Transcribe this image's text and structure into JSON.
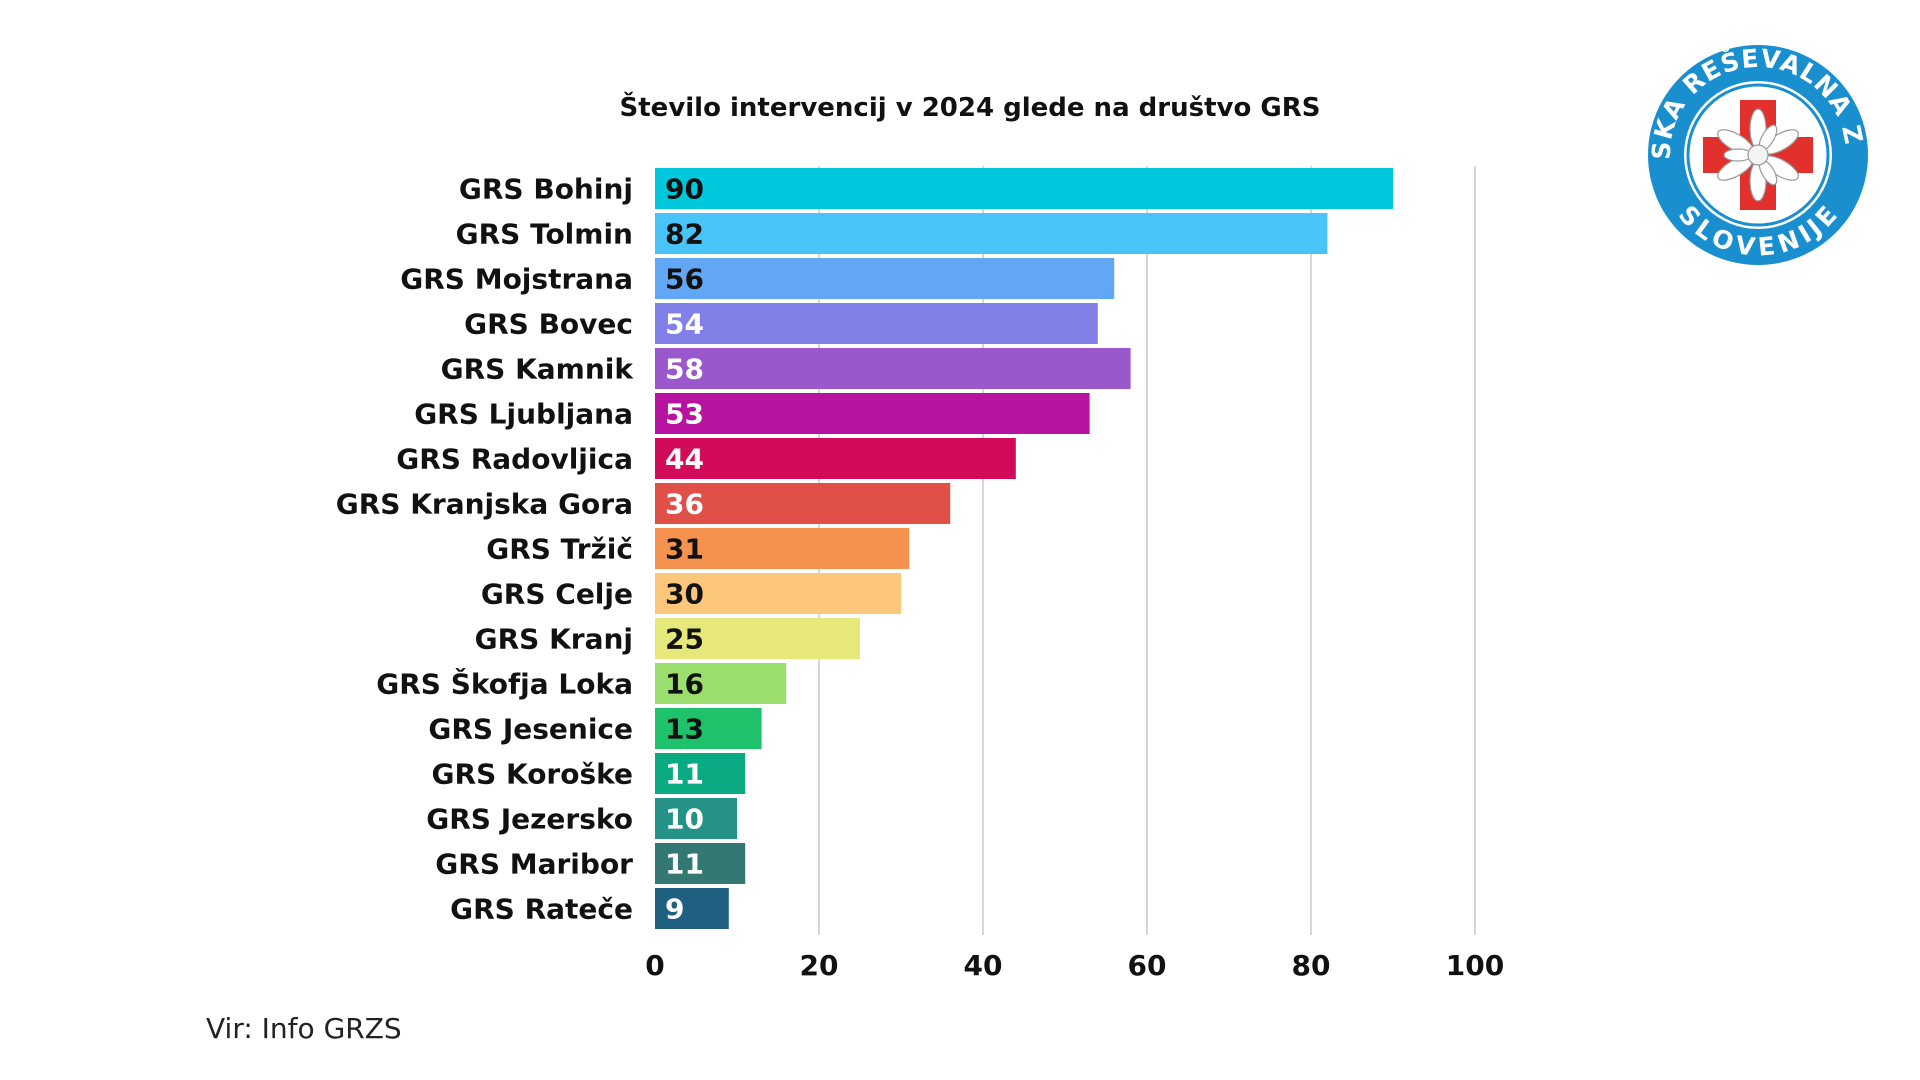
{
  "chart_data": {
    "type": "bar",
    "orientation": "horizontal",
    "title": "Število intervencij v 2024 glede na društvo GRS",
    "categories": [
      "GRS Bohinj",
      "GRS Tolmin",
      "GRS Mojstrana",
      "GRS Bovec",
      "GRS Kamnik",
      "GRS Ljubljana",
      "GRS Radovljica",
      "GRS Kranjska Gora",
      "GRS Tržič",
      "GRS Celje",
      "GRS Kranj",
      "GRS Škofja Loka",
      "GRS Jesenice",
      "GRS Koroške",
      "GRS Jezersko",
      "GRS Maribor",
      "GRS Rateče"
    ],
    "values": [
      90,
      82,
      56,
      54,
      58,
      53,
      44,
      36,
      31,
      30,
      25,
      16,
      13,
      11,
      10,
      11,
      9
    ],
    "colors": [
      "#00c8dc",
      "#48c4f8",
      "#62a6f6",
      "#8080e8",
      "#9b58cc",
      "#b812a0",
      "#d20a5a",
      "#e05048",
      "#f5924e",
      "#fcc77a",
      "#e6e87a",
      "#9ade6e",
      "#1ec26a",
      "#0aaa82",
      "#259288",
      "#337872",
      "#1f5f80"
    ],
    "label_colors": [
      "#111111",
      "#111111",
      "#111111",
      "#ffffff",
      "#ffffff",
      "#ffffff",
      "#ffffff",
      "#ffffff",
      "#111111",
      "#111111",
      "#111111",
      "#111111",
      "#111111",
      "#ffffff",
      "#ffffff",
      "#ffffff",
      "#ffffff"
    ],
    "xlim": [
      0,
      100
    ],
    "xticks": [
      0,
      20,
      40,
      60,
      80,
      100
    ],
    "xlabel": "",
    "ylabel": "",
    "grid": true
  },
  "source_text": "Vir: Info GRZS",
  "logo": {
    "top_text": "GORSKA REŠEVALNA ZVEZA",
    "bottom_text": "SLOVENIJE",
    "ring_color": "#1a8fd0",
    "cross_color": "#e2312d"
  }
}
